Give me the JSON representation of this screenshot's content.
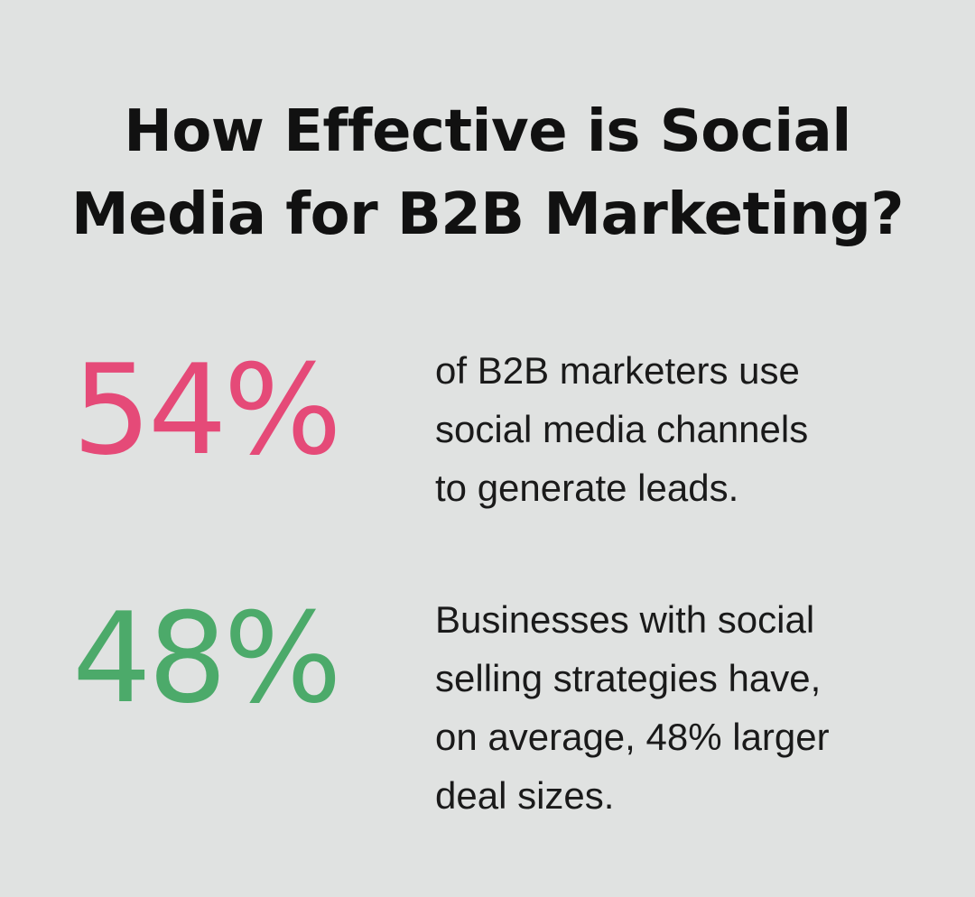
{
  "title_line1": "How Effective is Social",
  "title_line2": "Media for B2B Marketing?",
  "stats": [
    {
      "value": "54%",
      "color": "#e54a78",
      "lines": [
        "of B2B marketers use",
        "social media channels",
        "to generate leads."
      ]
    },
    {
      "value": "48%",
      "color": "#4caa6a",
      "lines": [
        "Businesses with social",
        "selling strategies have,",
        "on average, 48% larger",
        "deal sizes."
      ]
    }
  ]
}
